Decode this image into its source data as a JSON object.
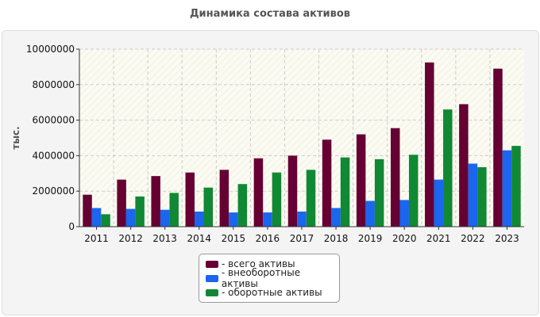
{
  "chart_data": {
    "type": "bar",
    "title": "Динамика состава активов",
    "ylabel": "тыс.",
    "xlabel": "",
    "ylim": [
      0,
      10000000
    ],
    "y_ticks": [
      "0",
      "2000000",
      "4000000",
      "6000000",
      "8000000",
      "10000000"
    ],
    "categories": [
      "2011",
      "2012",
      "2013",
      "2014",
      "2015",
      "2016",
      "2017",
      "2018",
      "2019",
      "2020",
      "2021",
      "2022",
      "2023"
    ],
    "series": [
      {
        "name": "всего активы",
        "color": "#660033",
        "values": [
          1800000,
          2650000,
          2850000,
          3050000,
          3200000,
          3850000,
          4000000,
          4900000,
          5200000,
          5550000,
          9250000,
          6900000,
          8900000
        ]
      },
      {
        "name": "внеоборотные активы",
        "color": "#1a66ee",
        "values": [
          1050000,
          1000000,
          950000,
          850000,
          800000,
          800000,
          850000,
          1050000,
          1450000,
          1500000,
          2650000,
          3550000,
          4300000
        ]
      },
      {
        "name": "оборотные активы",
        "color": "#118833",
        "values": [
          700000,
          1700000,
          1900000,
          2200000,
          2400000,
          3050000,
          3200000,
          3900000,
          3800000,
          4050000,
          6600000,
          3350000,
          4550000
        ]
      }
    ],
    "legend": {
      "placement": "bottom-center",
      "labels": [
        "- всего активы",
        "- внеоборотные активы",
        "- оборотные активы"
      ]
    },
    "grid": true
  }
}
